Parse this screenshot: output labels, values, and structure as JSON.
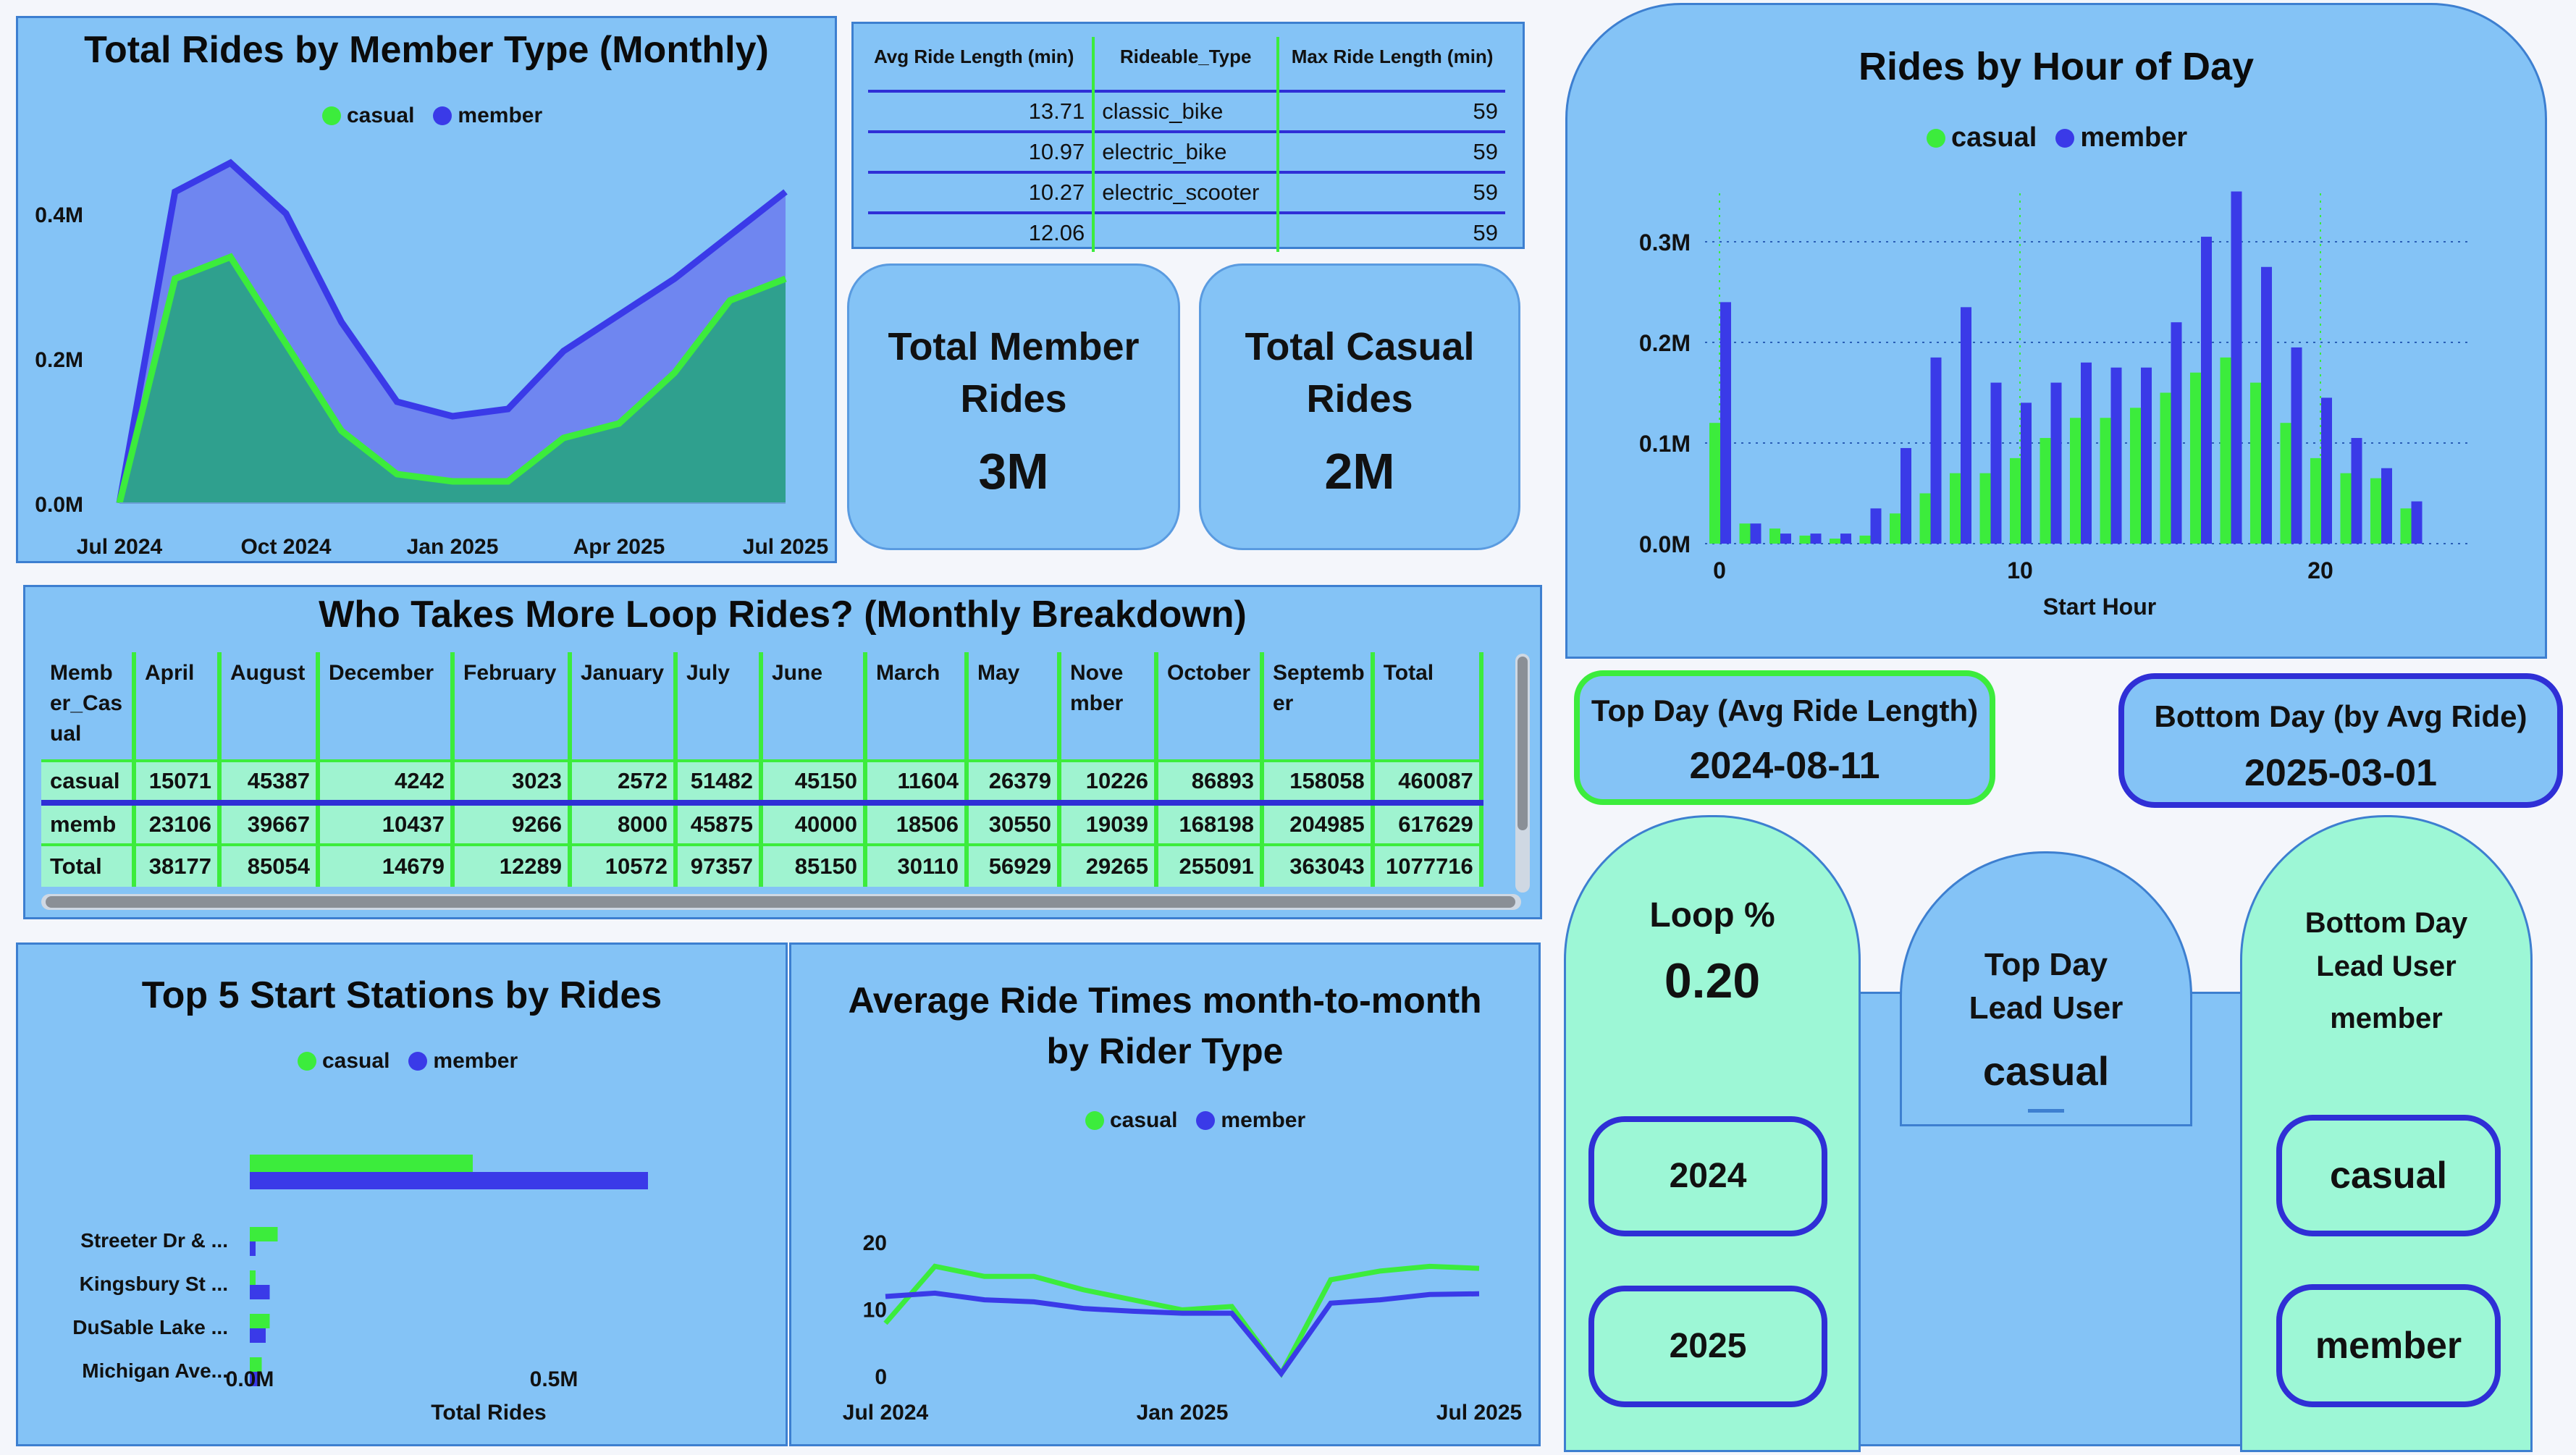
{
  "colors": {
    "casual": "#3cec3c",
    "member": "#3a3ae8",
    "panel": "#84c3f6",
    "mint": "#9df7d6"
  },
  "legend": {
    "casual": "casual",
    "member": "member"
  },
  "monthly_chart": {
    "title": "Total Rides by Member Type (Monthly)",
    "chart_data": {
      "type": "area",
      "x_ticks": [
        "Jul 2024",
        "Oct 2024",
        "Jan 2025",
        "Apr 2025",
        "Jul 2025"
      ],
      "y_ticks": [
        "0.0M",
        "0.2M",
        "0.4M"
      ],
      "ylim": [
        0,
        0.48
      ],
      "x": [
        "Jul 2024",
        "Aug 2024",
        "Sep 2024",
        "Oct 2024",
        "Nov 2024",
        "Dec 2024",
        "Jan 2025",
        "Feb 2025",
        "Mar 2025",
        "Apr 2025",
        "May 2025",
        "Jun 2025",
        "Jul 2025"
      ],
      "series": [
        {
          "name": "casual",
          "values": [
            0.0,
            0.31,
            0.34,
            0.22,
            0.1,
            0.04,
            0.03,
            0.03,
            0.09,
            0.11,
            0.18,
            0.28,
            0.31
          ]
        },
        {
          "name": "member",
          "values": [
            0.0,
            0.43,
            0.47,
            0.4,
            0.25,
            0.14,
            0.12,
            0.13,
            0.21,
            0.26,
            0.31,
            0.37,
            0.43
          ]
        }
      ]
    }
  },
  "ride_table": {
    "headers": [
      "Avg Ride Length (min)",
      "Rideable_Type",
      "Max Ride Length (min)"
    ],
    "rows": [
      [
        "13.71",
        "classic_bike",
        "59"
      ],
      [
        "10.97",
        "electric_bike",
        "59"
      ],
      [
        "10.27",
        "electric_scooter",
        "59"
      ],
      [
        "12.06",
        "",
        "59"
      ]
    ]
  },
  "kpis": {
    "member_title": "Total Member Rides",
    "member_value": "3M",
    "casual_title": "Total Casual Rides",
    "casual_value": "2M"
  },
  "hour_chart": {
    "title": "Rides by Hour of Day",
    "chart_data": {
      "type": "bar",
      "xlabel": "Start Hour",
      "x_ticks": [
        "0",
        "10",
        "20"
      ],
      "y_ticks": [
        "0.0M",
        "0.1M",
        "0.2M",
        "0.3M"
      ],
      "ylim": [
        0,
        0.35
      ],
      "categories": [
        0,
        1,
        2,
        3,
        4,
        5,
        6,
        7,
        8,
        9,
        10,
        11,
        12,
        13,
        14,
        15,
        16,
        17,
        18,
        19,
        20,
        21,
        22,
        23
      ],
      "series": [
        {
          "name": "casual",
          "values": [
            0.12,
            0.02,
            0.015,
            0.008,
            0.005,
            0.008,
            0.03,
            0.05,
            0.07,
            0.07,
            0.085,
            0.105,
            0.125,
            0.125,
            0.135,
            0.15,
            0.17,
            0.185,
            0.16,
            0.12,
            0.085,
            0.07,
            0.065,
            0.035
          ]
        },
        {
          "name": "member",
          "values": [
            0.24,
            0.02,
            0.01,
            0.01,
            0.01,
            0.035,
            0.095,
            0.185,
            0.235,
            0.16,
            0.14,
            0.16,
            0.18,
            0.175,
            0.175,
            0.22,
            0.305,
            0.35,
            0.275,
            0.195,
            0.145,
            0.105,
            0.075,
            0.042
          ]
        }
      ]
    }
  },
  "loop_table": {
    "title": "Who Takes More Loop Rides? (Monthly Breakdown)",
    "headers": [
      "Memb er_Cas ual",
      "April",
      "August",
      "December",
      "February",
      "January",
      "July",
      "June",
      "March",
      "May",
      "Nove mber",
      "October",
      "Septemb er",
      "Total"
    ],
    "rows": [
      [
        "casual",
        "15071",
        "45387",
        "4242",
        "3023",
        "2572",
        "51482",
        "45150",
        "11604",
        "26379",
        "10226",
        "86893",
        "158058",
        "460087"
      ],
      [
        "memb",
        "23106",
        "39667",
        "10437",
        "9266",
        "8000",
        "45875",
        "40000",
        "18506",
        "30550",
        "19039",
        "168198",
        "204985",
        "617629"
      ],
      [
        "Total",
        "38177",
        "85054",
        "14679",
        "12289",
        "10572",
        "97357",
        "85150",
        "30110",
        "56929",
        "29265",
        "255091",
        "363043",
        "1077716"
      ]
    ]
  },
  "top_day": {
    "title": "Top Day (Avg Ride Length)",
    "value": "2024-08-11"
  },
  "bottom_day": {
    "title": "Bottom Day (by Avg Ride)",
    "value": "2025-03-01"
  },
  "loop_pct": {
    "title": "Loop %",
    "value": "0.20"
  },
  "top_lead": {
    "title": "Top Day Lead User",
    "value": "casual"
  },
  "bottom_lead": {
    "title": "Bottom Day Lead User",
    "value": "member"
  },
  "slicers": {
    "year1": "2024",
    "year2": "2025",
    "type1": "casual",
    "type2": "member"
  },
  "stations_chart": {
    "title": "Top 5 Start Stations by Rides",
    "chart_data": {
      "type": "bar",
      "orientation": "horizontal",
      "xlabel": "Total Rides",
      "x_ticks": [
        "0.0M",
        "0.5M"
      ],
      "categories": [
        "",
        "Streeter Dr & ...",
        "Kingsbury St ...",
        "DuSable Lake ...",
        "Michigan Ave..."
      ],
      "series": [
        {
          "name": "casual",
          "values": [
            0.28,
            0.035,
            0.005,
            0.025,
            0.015
          ]
        },
        {
          "name": "member",
          "values": [
            0.5,
            0.005,
            0.025,
            0.02,
            0.01
          ]
        }
      ]
    }
  },
  "avg_chart": {
    "title_line1": "Average Ride Times month-to-month",
    "title_line2": "by Rider Type",
    "chart_data": {
      "type": "line",
      "x_ticks": [
        "Jul 2024",
        "Jan 2025",
        "Jul 2025"
      ],
      "y_ticks": [
        "0",
        "10",
        "20"
      ],
      "ylim": [
        0,
        22
      ],
      "x": [
        "Jul 2024",
        "Aug 2024",
        "Sep 2024",
        "Oct 2024",
        "Nov 2024",
        "Dec 2024",
        "Jan 2025",
        "Feb 2025",
        "Mar 2025",
        "Apr 2025",
        "May 2025",
        "Jun 2025",
        "Jul 2025"
      ],
      "series": [
        {
          "name": "casual",
          "values": [
            8,
            16.5,
            15,
            15,
            13,
            11.5,
            10,
            10.5,
            0.5,
            14.5,
            15.8,
            16.5,
            16.2
          ]
        },
        {
          "name": "member",
          "values": [
            12,
            12.5,
            11.5,
            11.2,
            10.2,
            9.8,
            9.5,
            9.5,
            0.5,
            11,
            11.5,
            12.3,
            12.4
          ]
        }
      ]
    }
  }
}
